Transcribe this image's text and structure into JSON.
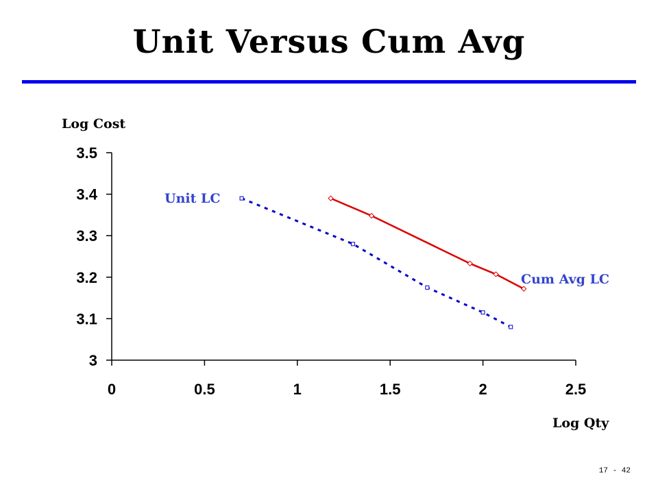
{
  "slide": {
    "title": "Unit Versus Cum Avg",
    "footer": "17 - 42",
    "rule_color": "#0000ee"
  },
  "chart_data": {
    "type": "line",
    "title": "",
    "xlabel": "Log Qty",
    "ylabel": "Log Cost",
    "xlim": [
      0,
      2.5
    ],
    "ylim": [
      3,
      3.5
    ],
    "xticks": [
      "0",
      "0.5",
      "1",
      "1.5",
      "2",
      "2.5"
    ],
    "yticks": [
      "3",
      "3.1",
      "3.2",
      "3.3",
      "3.4",
      "3.5"
    ],
    "grid": false,
    "legend": "inline labels",
    "series": [
      {
        "name": "Unit LC",
        "color": "#0000cc",
        "style": "dotted",
        "marker": "square",
        "x": [
          0.7,
          1.3,
          1.7,
          2.0,
          2.15
        ],
        "y": [
          3.39,
          3.28,
          3.175,
          3.115,
          3.08
        ]
      },
      {
        "name": "Cum Avg LC",
        "color": "#dd0000",
        "style": "solid",
        "marker": "diamond",
        "x": [
          1.18,
          1.4,
          1.93,
          2.07,
          2.22
        ],
        "y": [
          3.39,
          3.348,
          3.233,
          3.207,
          3.172
        ]
      }
    ],
    "label_colors": {
      "series_label": "#3344cc"
    }
  }
}
